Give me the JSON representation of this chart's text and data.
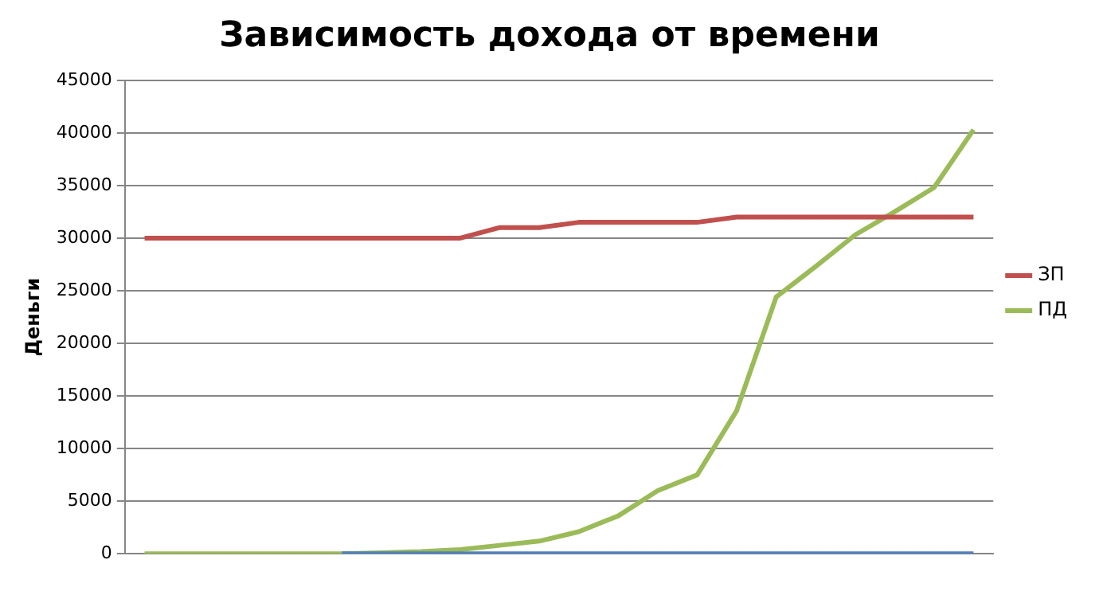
{
  "chart_data": {
    "type": "line",
    "title": "Зависимость дохода от времени",
    "ylabel": "Деньги",
    "categories": [
      null,
      null,
      null,
      null,
      null,
      null,
      null,
      null,
      null,
      null,
      null,
      null,
      null,
      null,
      null,
      null,
      null,
      null,
      null,
      null,
      null,
      null
    ],
    "series": [
      {
        "color": "#4f81bd",
        "values": [
          null,
          null,
          null,
          null,
          null,
          0,
          0,
          0,
          0,
          0,
          0,
          0,
          0,
          0,
          0,
          0,
          0,
          0,
          0,
          0,
          0,
          0
        ]
      },
      {
        "name": "ЗП",
        "color": "#c0504d",
        "values": [
          30000,
          30000,
          30000,
          30000,
          30000,
          30000,
          30000,
          30000,
          30000,
          31000,
          31000,
          31500,
          31500,
          31500,
          31500,
          32000,
          32000,
          32000,
          32000,
          32000,
          32000,
          32000
        ]
      },
      {
        "name": "ПД",
        "color": "#9bbb59",
        "values": [
          0,
          0,
          0,
          0,
          0,
          0,
          100,
          200,
          400,
          800,
          1200,
          2100,
          3600,
          6000,
          7500,
          13600,
          24400,
          27300,
          30300,
          32500,
          34800,
          40300
        ]
      }
    ],
    "ylim": [
      0,
      45000
    ],
    "yticks": [
      0,
      5000,
      10000,
      15000,
      20000,
      25000,
      30000,
      35000,
      40000,
      45000
    ],
    "grid": "y",
    "legend": "right",
    "marker": "none",
    "line_style": "solid"
  }
}
